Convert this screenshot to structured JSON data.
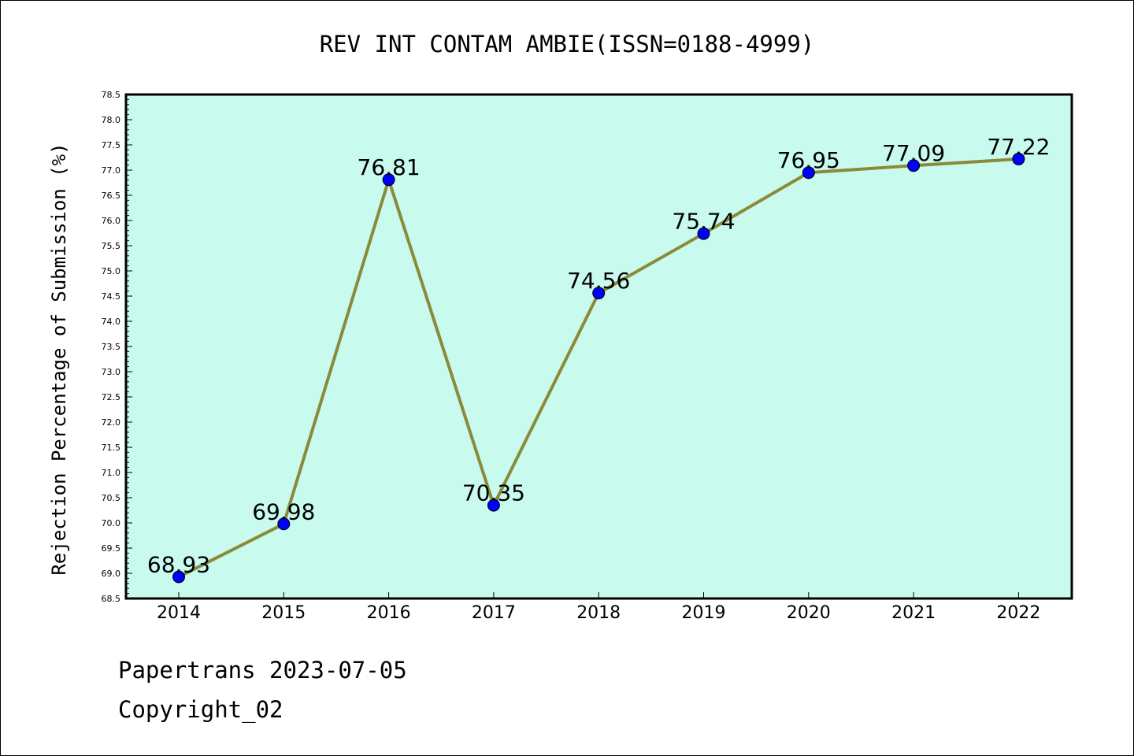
{
  "chart_data": {
    "type": "line",
    "title": "REV INT CONTAM AMBIE(ISSN=0188-4999)",
    "xlabel": "",
    "ylabel": "Rejection Percentage of Submission (%)",
    "categories": [
      "2014",
      "2015",
      "2016",
      "2017",
      "2018",
      "2019",
      "2020",
      "2021",
      "2022"
    ],
    "values": [
      68.93,
      69.98,
      76.81,
      70.35,
      74.56,
      75.74,
      76.95,
      77.09,
      77.22
    ],
    "data_labels": [
      "68.93",
      "69.98",
      "76.81",
      "70.35",
      "74.56",
      "75.74",
      "76.95",
      "77.09",
      "77.22"
    ],
    "ylim": [
      68.5,
      78.5
    ],
    "ytick_step": 0.5,
    "yticks": [
      "68.5",
      "69.0",
      "69.5",
      "70.0",
      "70.5",
      "71.0",
      "71.5",
      "72.0",
      "72.5",
      "73.0",
      "73.5",
      "74.0",
      "74.5",
      "75.0",
      "75.5",
      "76.0",
      "76.5",
      "77.0",
      "77.5",
      "78.0",
      "78.5"
    ],
    "grid": false,
    "legend": "none",
    "colors": {
      "plot_background": "#c8fbee",
      "line": "#8b8a3a",
      "marker": "#0000ff",
      "axis": "#000000"
    }
  },
  "footer": {
    "line1": "Papertrans 2023-07-05",
    "line2": "Copyright_02"
  }
}
